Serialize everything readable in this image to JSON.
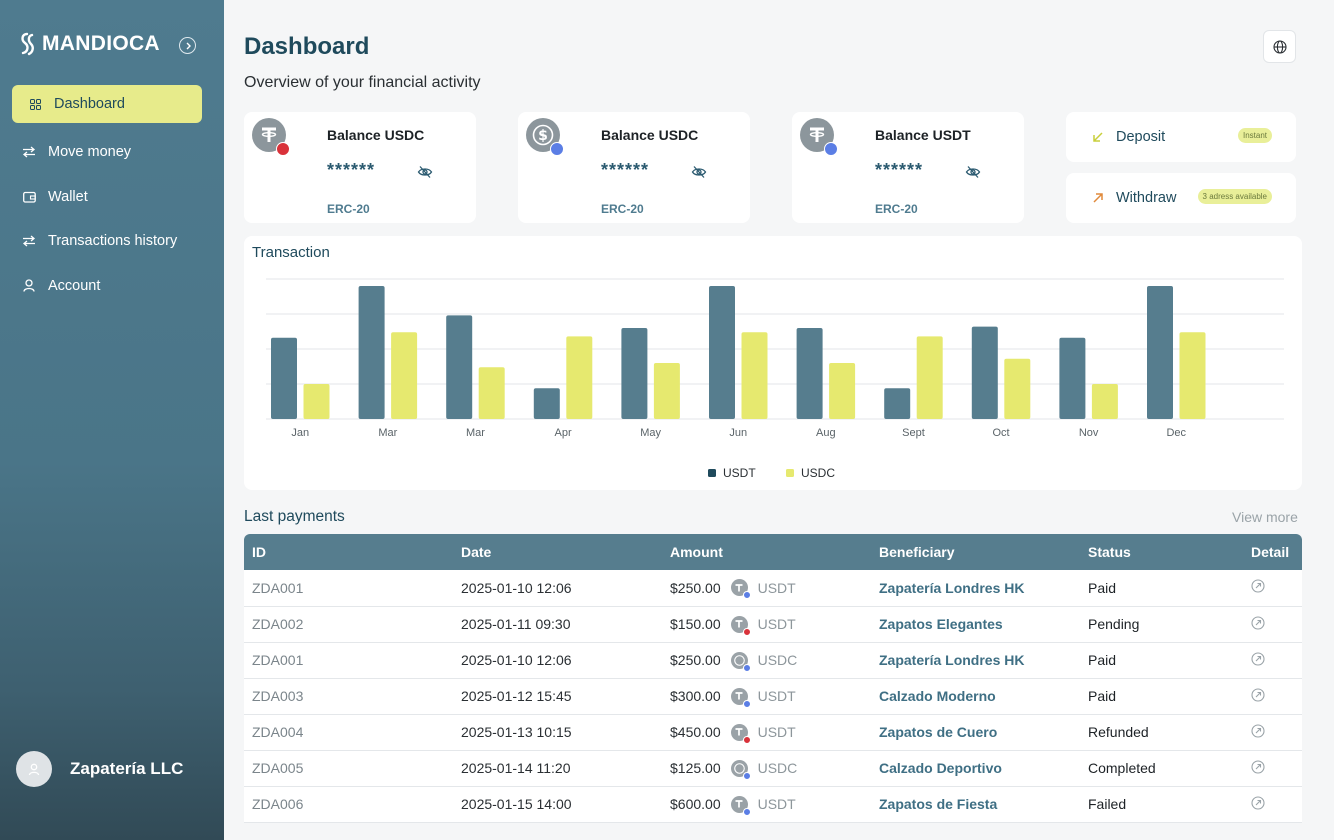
{
  "brand": {
    "name": "MANDIOCA"
  },
  "sidebar": {
    "items": [
      {
        "label": "Dashboard",
        "icon": "dashboard-icon",
        "active": true
      },
      {
        "label": "Move money",
        "icon": "transfer-icon"
      },
      {
        "label": "Wallet",
        "icon": "wallet-icon"
      },
      {
        "label": "Transactions history",
        "icon": "history-icon"
      },
      {
        "label": "Account",
        "icon": "user-icon"
      }
    ],
    "user_name": "Zapatería LLC"
  },
  "header": {
    "title": "Dashboard",
    "subtitle": "Overview of your financial activity"
  },
  "balances": [
    {
      "title": "Balance USDC",
      "value": "******",
      "network": "ERC-20",
      "coin": "tether",
      "badge_color": "#d9323a"
    },
    {
      "title": "Balance USDC",
      "value": "******",
      "network": "ERC-20",
      "coin": "usdc",
      "badge_color": "#5b7ee5"
    },
    {
      "title": "Balance USDT",
      "value": "******",
      "network": "ERC-20",
      "coin": "tether",
      "badge_color": "#5b7ee5"
    }
  ],
  "actions": {
    "deposit": {
      "label": "Deposit",
      "pill": "Instant"
    },
    "withdraw": {
      "label": "Withdraw",
      "pill": "3 adress available"
    }
  },
  "chart": {
    "title": "Transaction"
  },
  "chart_data": {
    "type": "bar",
    "title": "Transaction",
    "categories": [
      "Jan",
      "Mar",
      "Mar",
      "Apr",
      "May",
      "Jun",
      "Aug",
      "Sept",
      "Oct",
      "Nov",
      "Dec"
    ],
    "series": [
      {
        "name": "USDT",
        "color": "#567d8e",
        "values": [
          58,
          95,
          74,
          22,
          65,
          95,
          65,
          22,
          66,
          58,
          95
        ]
      },
      {
        "name": "USDC",
        "color": "#e6e96f",
        "values": [
          25,
          62,
          37,
          59,
          40,
          62,
          40,
          59,
          43,
          25,
          62
        ]
      }
    ],
    "ylim": [
      0,
      100
    ],
    "grid": true,
    "legend": "bottom-center"
  },
  "payments": {
    "title": "Last payments",
    "view_more": "View more",
    "columns": [
      "ID",
      "Date",
      "Amount",
      "Beneficiary",
      "Status",
      "Detail"
    ],
    "rows": [
      {
        "id": "ZDA001",
        "date": "2025-01-10 12:06",
        "amount": "$250.00",
        "currency": "USDT",
        "badge": "#5b7ee5",
        "beneficiary": "Zapatería Londres HK",
        "status": "Paid"
      },
      {
        "id": "ZDA002",
        "date": "2025-01-11 09:30",
        "amount": "$150.00",
        "currency": "USDT",
        "badge": "#d9323a",
        "beneficiary": "Zapatos Elegantes",
        "status": "Pending"
      },
      {
        "id": "ZDA001",
        "date": "2025-01-10 12:06",
        "amount": "$250.00",
        "currency": "USDC",
        "badge": "#5b7ee5",
        "beneficiary": "Zapatería Londres HK",
        "status": "Paid"
      },
      {
        "id": "ZDA003",
        "date": "2025-01-12 15:45",
        "amount": "$300.00",
        "currency": "USDT",
        "badge": "#5b7ee5",
        "beneficiary": "Calzado Moderno",
        "status": "Paid"
      },
      {
        "id": "ZDA004",
        "date": "2025-01-13 10:15",
        "amount": "$450.00",
        "currency": "USDT",
        "badge": "#d9323a",
        "beneficiary": "Zapatos de Cuero",
        "status": "Refunded"
      },
      {
        "id": "ZDA005",
        "date": "2025-01-14 11:20",
        "amount": "$125.00",
        "currency": "USDC",
        "badge": "#5b7ee5",
        "beneficiary": "Calzado Deportivo",
        "status": "Completed"
      },
      {
        "id": "ZDA006",
        "date": "2025-01-15 14:00",
        "amount": "$600.00",
        "currency": "USDT",
        "badge": "#5b7ee5",
        "beneficiary": "Zapatos de Fiesta",
        "status": "Failed"
      }
    ]
  }
}
